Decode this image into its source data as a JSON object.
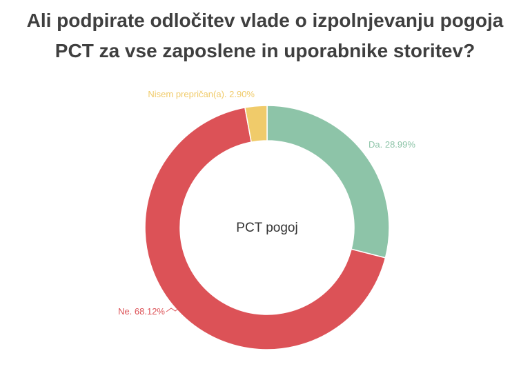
{
  "title": {
    "line1": "Ali podpirate odločitev vlade o izpolnjevanju pogoja",
    "line2": "PCT za vse zaposlene in uporabnike storitev?"
  },
  "chart_data": {
    "type": "pie",
    "donut": true,
    "center_label": "PCT pogoj",
    "slices": [
      {
        "label": "Da. 28.99%",
        "category": "Da",
        "value": 28.99,
        "color": "#8dc4a8"
      },
      {
        "label": "Ne. 68.12%",
        "category": "Ne",
        "value": 68.12,
        "color": "#dc5257"
      },
      {
        "label": "Nisem prepričan(a). 2.90%",
        "category": "Nisem prepričan(a)",
        "value": 2.9,
        "color": "#f0cb6a"
      }
    ],
    "start": "top",
    "direction": "clockwise",
    "legend": "none"
  }
}
